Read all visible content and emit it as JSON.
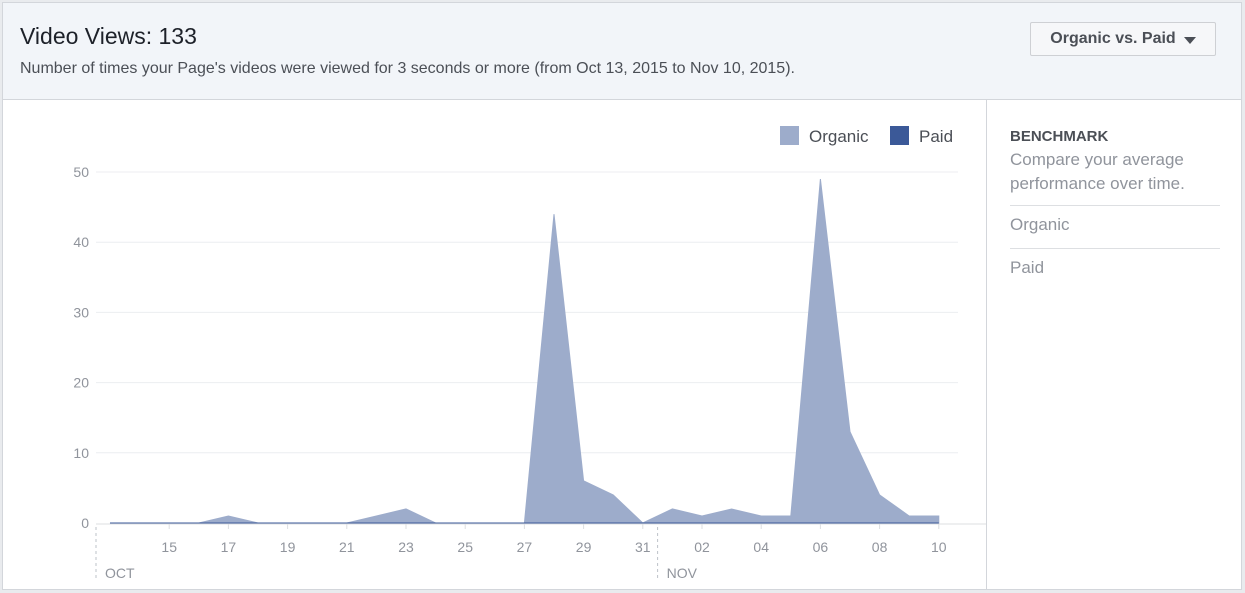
{
  "header": {
    "title": "Video Views: 133",
    "subtitle": "Number of times your Page's videos were viewed for 3 seconds or more (from Oct 13, 2015 to Nov 10, 2015).",
    "dropdown_label": "Organic vs. Paid"
  },
  "benchmark": {
    "title": "BENCHMARK",
    "description": "Compare your average performance over time.",
    "items": [
      "Organic",
      "Paid"
    ]
  },
  "colors": {
    "organic": "#9daccb",
    "paid": "#3b5998",
    "grid": "#eceef1",
    "axis": "#dddfe2"
  },
  "chart_data": {
    "type": "area",
    "x": [
      "2015-10-13",
      "2015-10-14",
      "2015-10-15",
      "2015-10-16",
      "2015-10-17",
      "2015-10-18",
      "2015-10-19",
      "2015-10-20",
      "2015-10-21",
      "2015-10-22",
      "2015-10-23",
      "2015-10-24",
      "2015-10-25",
      "2015-10-26",
      "2015-10-27",
      "2015-10-28",
      "2015-10-29",
      "2015-10-30",
      "2015-10-31",
      "2015-11-01",
      "2015-11-02",
      "2015-11-03",
      "2015-11-04",
      "2015-11-05",
      "2015-11-06",
      "2015-11-07",
      "2015-11-08",
      "2015-11-09",
      "2015-11-10"
    ],
    "series": [
      {
        "name": "Organic",
        "values": [
          0,
          0,
          0,
          0,
          1,
          0,
          0,
          0,
          0,
          1,
          2,
          0,
          0,
          0,
          0,
          44,
          6,
          4,
          0,
          2,
          1,
          2,
          1,
          1,
          49,
          13,
          4,
          1,
          1
        ]
      },
      {
        "name": "Paid",
        "values": [
          0,
          0,
          0,
          0,
          0,
          0,
          0,
          0,
          0,
          0,
          0,
          0,
          0,
          0,
          0,
          0,
          0,
          0,
          0,
          0,
          0,
          0,
          0,
          0,
          0,
          0,
          0,
          0,
          0
        ]
      }
    ],
    "x_tick_labels": [
      "15",
      "17",
      "19",
      "21",
      "23",
      "25",
      "27",
      "29",
      "31",
      "02",
      "04",
      "06",
      "08",
      "10"
    ],
    "month_labels": [
      "OCT",
      "NOV"
    ],
    "y_ticks": [
      0,
      10,
      20,
      30,
      40,
      50
    ],
    "ylim": [
      0,
      50
    ],
    "grid": true,
    "legend_position": "top-right"
  }
}
